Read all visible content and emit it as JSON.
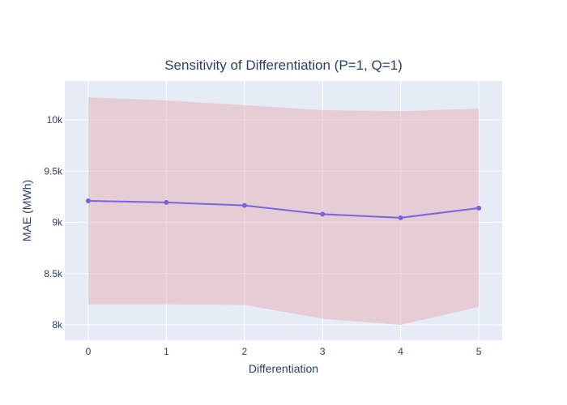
{
  "chart_data": {
    "type": "line",
    "title": "Sensitivity of Differentiation (P=1, Q=1)",
    "xlabel": "Differentiation",
    "ylabel": "MAE (MWh)",
    "x": [
      0,
      1,
      2,
      3,
      4,
      5
    ],
    "xlim": [
      -0.3,
      5.3
    ],
    "ylim": [
      7850,
      10380
    ],
    "y_ticks": [
      8000,
      8500,
      9000,
      9500,
      10000
    ],
    "y_tick_labels": [
      "8k",
      "8.5k",
      "9k",
      "9.5k",
      "10k"
    ],
    "x_ticks": [
      0,
      1,
      2,
      3,
      4,
      5
    ],
    "x_tick_labels": [
      "0",
      "1",
      "2",
      "3",
      "4",
      "5"
    ],
    "grid": true,
    "series": [
      {
        "values": [
          9210,
          9195,
          9165,
          9080,
          9045,
          9140
        ],
        "band_upper": [
          10220,
          10190,
          10145,
          10095,
          10085,
          10110
        ],
        "band_lower": [
          8200,
          8200,
          8195,
          8060,
          8000,
          8175
        ]
      }
    ],
    "colors": {
      "line": "#7b63e0",
      "marker": "#7b63e0",
      "band": "rgba(228,166,172,0.45)",
      "plot_bg": "#e5ecf6",
      "grid": "#ffffff",
      "text": "#2a3f5f"
    }
  }
}
